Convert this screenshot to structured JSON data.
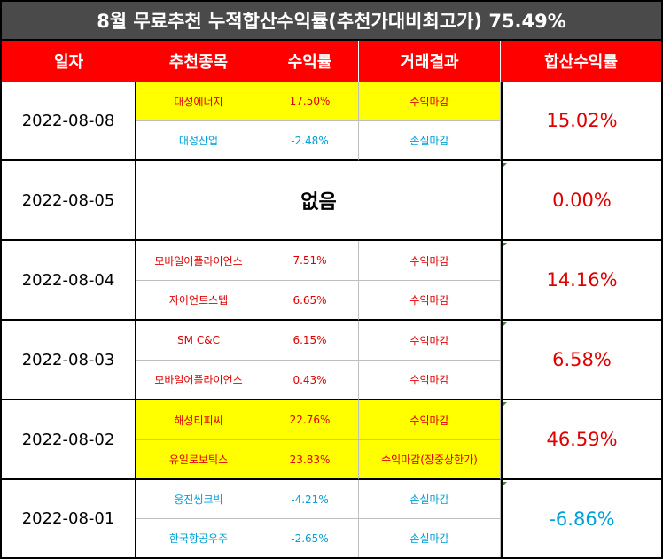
{
  "title": "8월 무료추천 누적합산수익률(추천가대비최고가) 75.49%",
  "headers": [
    "일자",
    "추천종목",
    "수익률",
    "거래결과",
    "합산수익률"
  ],
  "groups": [
    {
      "date": "2022-08-08",
      "cumulative": "15.02%",
      "cum_color": "red",
      "rows": [
        {
          "stock": "대성에너지",
          "return": "17.50%",
          "result": "수익마감",
          "highlight": true,
          "color": "red"
        },
        {
          "stock": "대성산업",
          "return": "-2.48%",
          "result": "손실마감",
          "highlight": false,
          "color": "blue"
        }
      ]
    },
    {
      "date": "2022-08-05",
      "cumulative": "0.00%",
      "cum_color": "red",
      "none_text": "없음",
      "rows": []
    },
    {
      "date": "2022-08-04",
      "cumulative": "14.16%",
      "cum_color": "red",
      "rows": [
        {
          "stock": "모바일어플라이언스",
          "return": "7.51%",
          "result": "수익마감",
          "highlight": false,
          "color": "red"
        },
        {
          "stock": "자이언트스텝",
          "return": "6.65%",
          "result": "수익마감",
          "highlight": false,
          "color": "red"
        }
      ]
    },
    {
      "date": "2022-08-03",
      "cumulative": "6.58%",
      "cum_color": "red",
      "rows": [
        {
          "stock": "SM C&C",
          "return": "6.15%",
          "result": "수익마감",
          "highlight": false,
          "color": "red"
        },
        {
          "stock": "모바일어플라이언스",
          "return": "0.43%",
          "result": "수익마감",
          "highlight": false,
          "color": "red"
        }
      ]
    },
    {
      "date": "2022-08-02",
      "cumulative": "46.59%",
      "cum_color": "red",
      "rows": [
        {
          "stock": "해성티피씨",
          "return": "22.76%",
          "result": "수익마감",
          "highlight": true,
          "color": "red"
        },
        {
          "stock": "유일로보틱스",
          "return": "23.83%",
          "result": "수익마감(장중상한가)",
          "highlight": true,
          "color": "red"
        }
      ]
    },
    {
      "date": "2022-08-01",
      "cumulative": "-6.86%",
      "cum_color": "blue",
      "rows": [
        {
          "stock": "웅진씽크빅",
          "return": "-4.21%",
          "result": "손실마감",
          "highlight": false,
          "color": "blue"
        },
        {
          "stock": "한국항공우주",
          "return": "-2.65%",
          "result": "손실마감",
          "highlight": false,
          "color": "blue"
        }
      ]
    }
  ],
  "colors": {
    "title_bg": "#4a4a4a",
    "header_bg": "#ff0000",
    "highlight": "#ffff00",
    "positive": "#e00000",
    "negative": "#00a0d8"
  }
}
